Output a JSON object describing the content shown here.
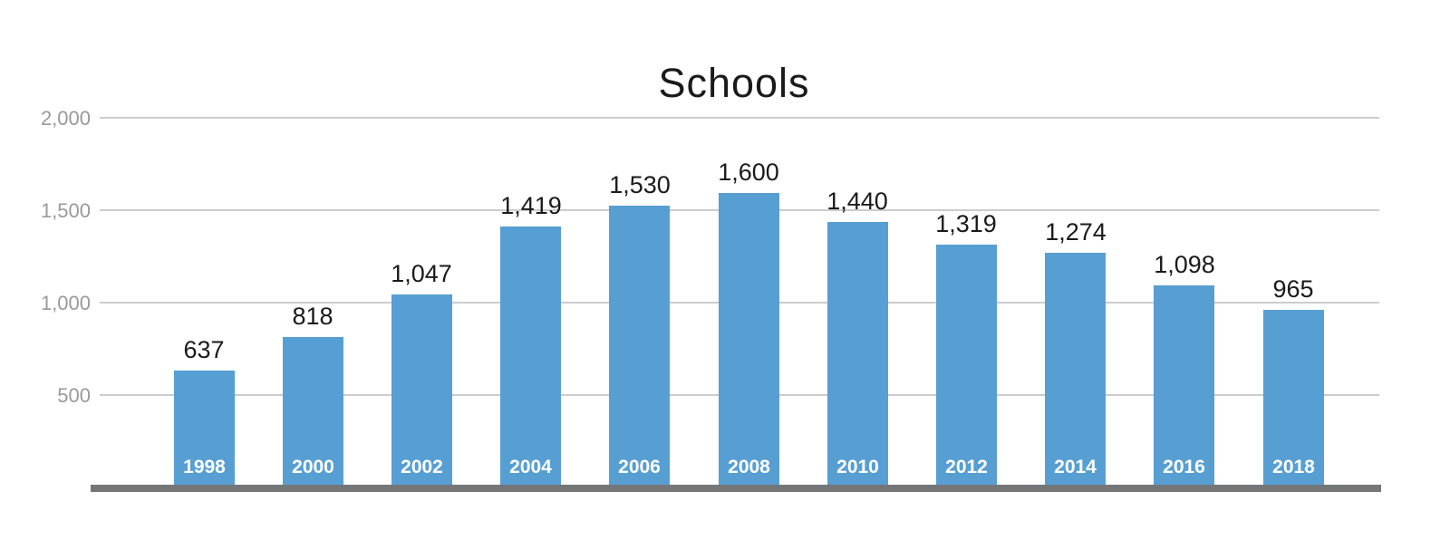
{
  "chart_data": {
    "type": "bar",
    "title": "Schools",
    "categories": [
      "1998",
      "2000",
      "2002",
      "2004",
      "2006",
      "2008",
      "2010",
      "2012",
      "2014",
      "2016",
      "2018"
    ],
    "values": [
      637,
      818,
      1047,
      1419,
      1530,
      1600,
      1440,
      1319,
      1274,
      1098,
      965
    ],
    "value_labels": [
      "637",
      "818",
      "1,047",
      "1,419",
      "1,530",
      "1,600",
      "1,440",
      "1,319",
      "1,274",
      "1,098",
      "965"
    ],
    "xlabel": "",
    "ylabel": "",
    "ylim": [
      0,
      2000
    ],
    "y_ticks": [
      {
        "value": 500,
        "label": "500"
      },
      {
        "value": 1000,
        "label": "1,000"
      },
      {
        "value": 1500,
        "label": "1,500"
      },
      {
        "value": 2000,
        "label": "2,000"
      }
    ],
    "grid": true,
    "legend": false,
    "layout": {
      "single_series": true,
      "value_labels_position": "above-bars",
      "category_labels_position": "inside-bar-bottom"
    },
    "colors": {
      "bar": "#579fd3",
      "gridline": "#cccccc",
      "tick_label": "#999999",
      "value_label": "#1a1a1a",
      "category_label": "#ffffff",
      "baseline": "#74777a",
      "title": "#1a1a1a",
      "background": "#ffffff"
    }
  }
}
